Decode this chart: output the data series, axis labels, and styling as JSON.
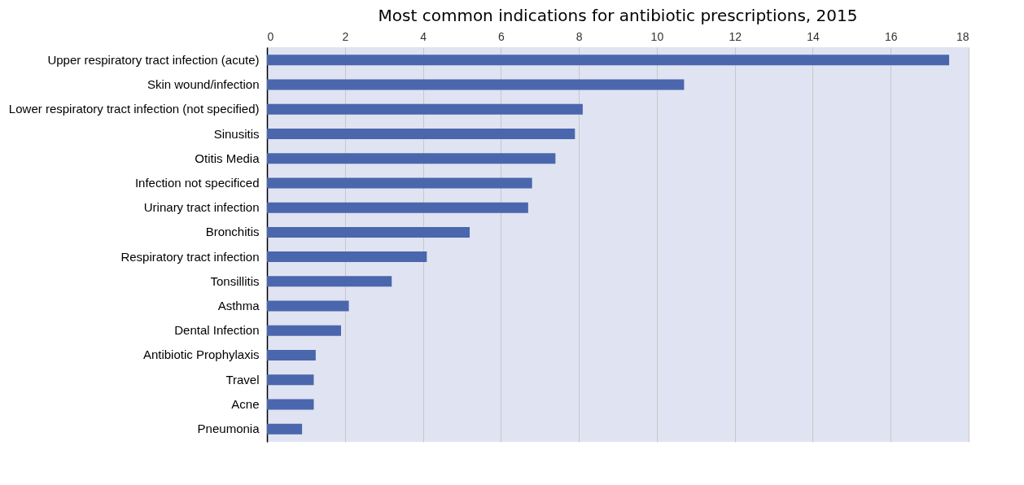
{
  "chart_data": {
    "type": "bar",
    "orientation": "horizontal",
    "title": "Most common indications for antibiotic prescriptions, 2015",
    "categories": [
      "Upper respiratory tract infection (acute)",
      "Skin wound/infection",
      "Lower respiratory tract infection (not specified)",
      "Sinusitis",
      "Otitis Media",
      "Infection not specificed",
      "Urinary tract infection",
      "Bronchitis",
      "Respiratory tract infection",
      "Tonsillitis",
      "Asthma",
      "Dental Infection",
      "Antibiotic Prophylaxis",
      "Travel",
      "Acne",
      "Pneumonia"
    ],
    "values": [
      17.5,
      10.7,
      8.1,
      7.9,
      7.4,
      6.8,
      6.7,
      5.2,
      4.1,
      3.2,
      2.1,
      1.9,
      1.25,
      1.2,
      1.2,
      0.9
    ],
    "color": "#4a67ad",
    "xlim": [
      0,
      18
    ],
    "xticks": [
      0,
      2,
      4,
      6,
      8,
      10,
      12,
      14,
      16,
      18
    ],
    "grid": "x"
  }
}
